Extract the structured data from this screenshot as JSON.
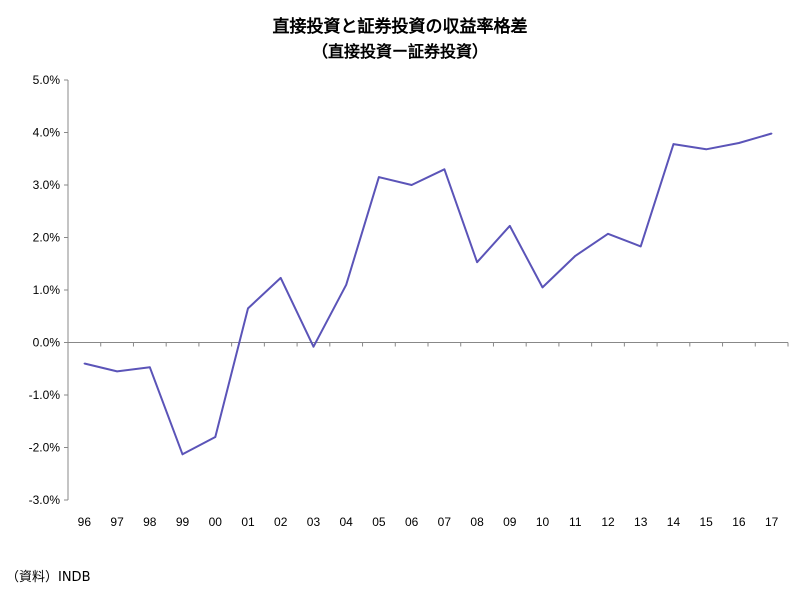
{
  "chart_data": {
    "type": "line",
    "title": "直接投資と証券投資の収益率格差",
    "subtitle": "（直接投資ー証券投資）",
    "xlabel": "",
    "ylabel": "",
    "categories": [
      "96",
      "97",
      "98",
      "99",
      "00",
      "01",
      "02",
      "03",
      "04",
      "05",
      "06",
      "07",
      "08",
      "09",
      "10",
      "11",
      "12",
      "13",
      "14",
      "15",
      "16",
      "17"
    ],
    "series": [
      {
        "values": [
          -0.4,
          -0.55,
          -0.47,
          -2.13,
          -1.8,
          0.65,
          1.23,
          -0.08,
          1.1,
          3.15,
          3.0,
          3.3,
          1.53,
          2.22,
          1.05,
          1.65,
          2.07,
          1.83,
          3.78,
          3.68,
          3.8,
          3.98
        ]
      }
    ],
    "y_ticks": [
      "5.0%",
      "4.0%",
      "3.0%",
      "2.0%",
      "1.0%",
      "0.0%",
      "-1.0%",
      "-2.0%",
      "-3.0%"
    ],
    "ylim": [
      -3,
      5
    ],
    "line_color": "#5b54b8",
    "grid": false,
    "legend": "none"
  },
  "source_note": "（資料）INDB"
}
